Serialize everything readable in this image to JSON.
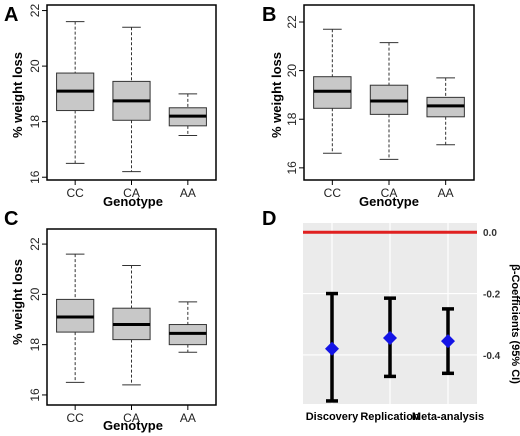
{
  "chart_data": [
    {
      "panel": "A",
      "type": "box",
      "ylabel": "% weight loss",
      "xlabel": "Genotype",
      "categories": [
        "CC",
        "CA",
        "AA"
      ],
      "ylim": [
        15.9,
        22.2
      ],
      "yticks": [
        16,
        18,
        20,
        22
      ],
      "boxes": [
        {
          "min": 16.5,
          "q1": 18.4,
          "median": 19.1,
          "q3": 19.75,
          "max": 21.6
        },
        {
          "min": 16.2,
          "q1": 18.05,
          "median": 18.75,
          "q3": 19.45,
          "max": 21.4
        },
        {
          "min": 17.5,
          "q1": 17.85,
          "median": 18.2,
          "q3": 18.5,
          "max": 19.0
        }
      ]
    },
    {
      "panel": "B",
      "type": "box",
      "ylabel": "% weight loss",
      "xlabel": "Genotype",
      "categories": [
        "CC",
        "CA",
        "AA"
      ],
      "ylim": [
        15.5,
        22.7
      ],
      "yticks": [
        16,
        18,
        20,
        22
      ],
      "boxes": [
        {
          "min": 16.6,
          "q1": 18.45,
          "median": 19.15,
          "q3": 19.75,
          "max": 21.7
        },
        {
          "min": 16.35,
          "q1": 18.2,
          "median": 18.75,
          "q3": 19.4,
          "max": 21.15
        },
        {
          "min": 16.95,
          "q1": 18.1,
          "median": 18.55,
          "q3": 18.9,
          "max": 19.7
        }
      ]
    },
    {
      "panel": "C",
      "type": "box",
      "ylabel": "% weight loss",
      "xlabel": "Genotype",
      "categories": [
        "CC",
        "CA",
        "AA"
      ],
      "ylim": [
        15.6,
        22.6
      ],
      "yticks": [
        16,
        18,
        20,
        22
      ],
      "boxes": [
        {
          "min": 16.5,
          "q1": 18.5,
          "median": 19.1,
          "q3": 19.8,
          "max": 21.6
        },
        {
          "min": 16.4,
          "q1": 18.2,
          "median": 18.8,
          "q3": 19.45,
          "max": 21.15
        },
        {
          "min": 17.7,
          "q1": 18.0,
          "median": 18.45,
          "q3": 18.8,
          "max": 19.7
        }
      ]
    },
    {
      "panel": "D",
      "type": "errorbar",
      "ylabel": "β-Coefficients (95% CI)",
      "categories": [
        "Discovery",
        "Replication",
        "Meta-analysis"
      ],
      "ylim": [
        -0.56,
        0.03
      ],
      "yticks": [
        0.0,
        -0.2,
        -0.4
      ],
      "ytick_labels": [
        "0.0",
        "-0.2",
        "-0.4"
      ],
      "reference_line": 0.0,
      "points": [
        {
          "estimate": -0.38,
          "lower": -0.55,
          "upper": -0.2
        },
        {
          "estimate": -0.345,
          "lower": -0.47,
          "upper": -0.215
        },
        {
          "estimate": -0.355,
          "lower": -0.46,
          "upper": -0.25
        }
      ],
      "colors": {
        "point": "#1414e6",
        "bar": "#000000",
        "reference": "#e02020",
        "background": "#ebebeb",
        "grid": "#ffffff"
      }
    }
  ],
  "colors": {
    "box_fill": "#c8c8c8",
    "box_stroke": "#333333"
  }
}
